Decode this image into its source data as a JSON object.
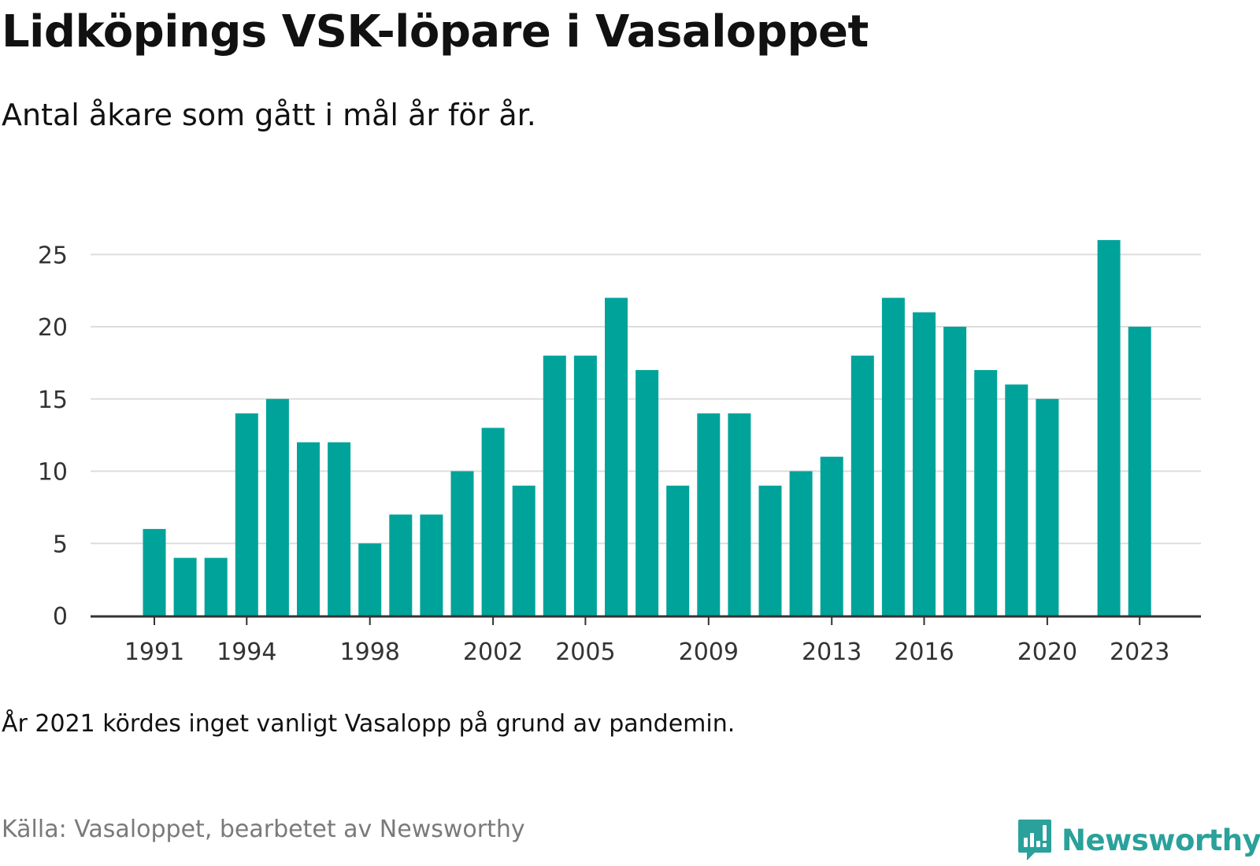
{
  "title": "Lidköpings VSK-löpare i Vasaloppet",
  "subtitle": "Antal åkare som gått i mål år för år.",
  "note": "År 2021 kördes inget vanligt Vasalopp på grund av pandemin.",
  "source": "Källa: Vasaloppet, bearbetet av Newsworthy",
  "brand": {
    "name": "Newsworthy",
    "icon": "newsworthy-logo-icon",
    "color": "#2aa19a"
  },
  "colors": {
    "bar": "#00a39a",
    "grid": "#dddddd",
    "axis": "#333333",
    "tick_text": "#333333"
  },
  "chart_data": {
    "type": "bar",
    "title": "Lidköpings VSK-löpare i Vasaloppet",
    "subtitle": "Antal åkare som gått i mål år för år.",
    "xlabel": "",
    "ylabel": "",
    "categories": [
      1991,
      1992,
      1993,
      1994,
      1995,
      1996,
      1997,
      1998,
      1999,
      2000,
      2001,
      2002,
      2003,
      2004,
      2005,
      2006,
      2007,
      2008,
      2009,
      2010,
      2011,
      2012,
      2013,
      2014,
      2015,
      2016,
      2017,
      2018,
      2019,
      2020,
      2021,
      2022,
      2023
    ],
    "values": [
      6,
      4,
      4,
      14,
      15,
      12,
      12,
      5,
      7,
      7,
      10,
      13,
      9,
      18,
      18,
      22,
      17,
      9,
      14,
      14,
      9,
      10,
      11,
      18,
      22,
      21,
      20,
      17,
      16,
      15,
      null,
      26,
      20
    ],
    "ylim": [
      0,
      26
    ],
    "yticks": [
      0,
      5,
      10,
      15,
      20,
      25
    ],
    "xtick_labels": [
      "1991",
      "1994",
      "1998",
      "2002",
      "2005",
      "2009",
      "2013",
      "2016",
      "2020",
      "2023"
    ],
    "grid": "horizontal",
    "legend": "none"
  }
}
